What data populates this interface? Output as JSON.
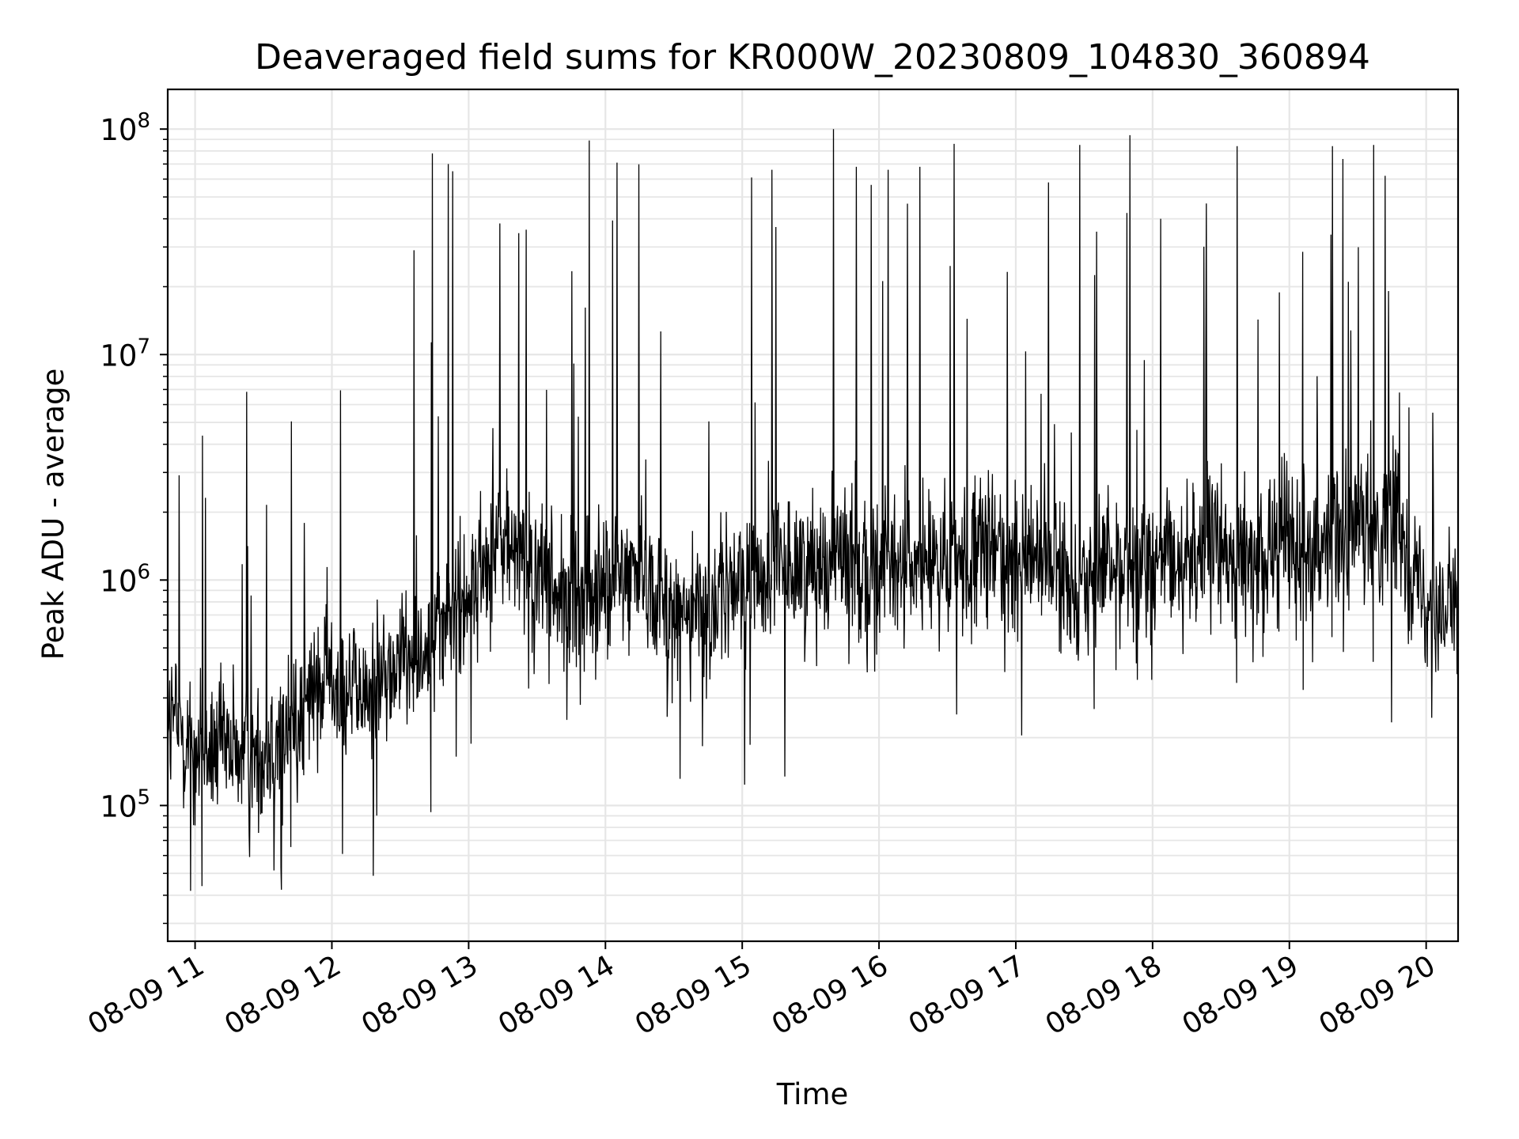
{
  "chart_data": {
    "type": "line",
    "title": "Deaveraged field sums for KR000W_20230809_104830_360894",
    "xlabel": "Time",
    "ylabel": "Peak ADU - average",
    "xscale": "time",
    "yscale": "log",
    "xlim": [
      "2023-08-09 10:48",
      "2023-08-09 20:14"
    ],
    "ylim": [
      25000,
      150000000
    ],
    "grid": true,
    "legend": "none",
    "line_color": "#000000",
    "x_ticks": [
      {
        "value": "2023-08-09 11:00",
        "label": "08-09 11"
      },
      {
        "value": "2023-08-09 12:00",
        "label": "08-09 12"
      },
      {
        "value": "2023-08-09 13:00",
        "label": "08-09 13"
      },
      {
        "value": "2023-08-09 14:00",
        "label": "08-09 14"
      },
      {
        "value": "2023-08-09 15:00",
        "label": "08-09 15"
      },
      {
        "value": "2023-08-09 16:00",
        "label": "08-09 16"
      },
      {
        "value": "2023-08-09 17:00",
        "label": "08-09 17"
      },
      {
        "value": "2023-08-09 18:00",
        "label": "08-09 18"
      },
      {
        "value": "2023-08-09 19:00",
        "label": "08-09 19"
      },
      {
        "value": "2023-08-09 20:00",
        "label": "08-09 20"
      }
    ],
    "y_ticks": [
      {
        "value": 100000,
        "base": "10",
        "exponent": "5"
      },
      {
        "value": 1000000,
        "base": "10",
        "exponent": "6"
      },
      {
        "value": 10000000,
        "base": "10",
        "exponent": "7"
      },
      {
        "value": 100000000,
        "base": "10",
        "exponent": "8"
      }
    ],
    "series": [
      {
        "x": [
          "2023-08-09 10:48",
          "2023-08-09 11:00",
          "2023-08-09 11:15",
          "2023-08-09 11:30",
          "2023-08-09 11:45",
          "2023-08-09 12:00",
          "2023-08-09 12:15",
          "2023-08-09 12:30",
          "2023-08-09 12:45",
          "2023-08-09 13:00",
          "2023-08-09 13:15",
          "2023-08-09 13:30",
          "2023-08-09 13:45",
          "2023-08-09 14:00",
          "2023-08-09 14:15",
          "2023-08-09 14:30",
          "2023-08-09 14:45",
          "2023-08-09 15:00",
          "2023-08-09 15:15",
          "2023-08-09 15:30",
          "2023-08-09 15:45",
          "2023-08-09 16:00",
          "2023-08-09 16:15",
          "2023-08-09 16:30",
          "2023-08-09 16:45",
          "2023-08-09 17:00",
          "2023-08-09 17:15",
          "2023-08-09 17:30",
          "2023-08-09 17:45",
          "2023-08-09 18:00",
          "2023-08-09 18:15",
          "2023-08-09 18:30",
          "2023-08-09 18:45",
          "2023-08-09 19:00",
          "2023-08-09 19:15",
          "2023-08-09 19:30",
          "2023-08-09 19:45",
          "2023-08-09 20:00",
          "2023-08-09 20:14"
        ],
        "y": [
          250000,
          180000,
          170000,
          160000,
          250000,
          380000,
          300000,
          450000,
          550000,
          900000,
          1500000,
          1000000,
          800000,
          900000,
          1200000,
          700000,
          750000,
          1000000,
          1100000,
          1200000,
          1300000,
          1100000,
          1200000,
          1100000,
          1300000,
          1400000,
          1100000,
          1000000,
          1200000,
          1100000,
          1300000,
          1400000,
          1200000,
          1500000,
          1600000,
          1500000,
          2000000,
          800000,
          700000
        ]
      }
    ],
    "peaks": [
      {
        "x": "2023-08-09 12:36",
        "y": 29000000
      },
      {
        "x": "2023-08-09 12:44",
        "y": 78000000
      },
      {
        "x": "2023-08-09 12:51",
        "y": 70000000
      },
      {
        "x": "2023-08-09 12:53",
        "y": 65000000
      },
      {
        "x": "2023-08-09 13:53",
        "y": 89000000
      },
      {
        "x": "2023-08-09 14:05",
        "y": 71000000
      },
      {
        "x": "2023-08-09 15:04",
        "y": 61000000
      },
      {
        "x": "2023-08-09 15:13",
        "y": 66000000
      },
      {
        "x": "2023-08-09 15:40",
        "y": 100000000
      },
      {
        "x": "2023-08-09 15:50",
        "y": 68000000
      },
      {
        "x": "2023-08-09 16:04",
        "y": 66000000
      },
      {
        "x": "2023-08-09 16:18",
        "y": 68000000
      },
      {
        "x": "2023-08-09 16:33",
        "y": 86000000
      },
      {
        "x": "2023-08-09 17:28",
        "y": 85000000
      },
      {
        "x": "2023-08-09 17:50",
        "y": 94000000
      },
      {
        "x": "2023-08-09 18:37",
        "y": 84000000
      },
      {
        "x": "2023-08-09 19:19",
        "y": 84000000
      },
      {
        "x": "2023-08-09 19:37",
        "y": 85000000
      }
    ]
  }
}
